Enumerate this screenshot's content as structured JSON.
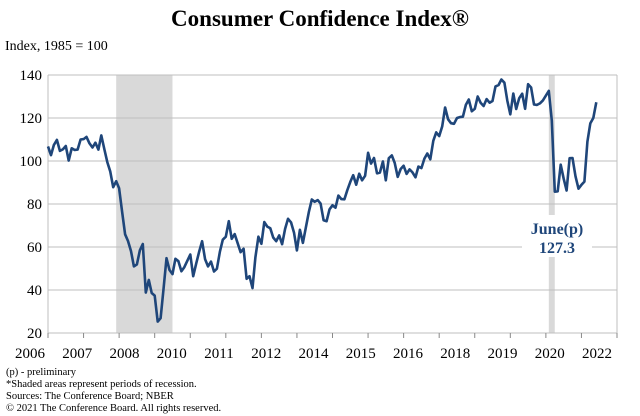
{
  "chart_data": {
    "type": "line",
    "title": "Consumer Confidence Index®",
    "ylabel": "Index, 1985 = 100",
    "xlabel": "",
    "ylim": [
      20,
      140
    ],
    "yticks": [
      20,
      40,
      60,
      80,
      100,
      120,
      140
    ],
    "xlim": [
      2006,
      2022
    ],
    "xtick_labels": [
      "2006",
      "2007",
      "2008",
      "2010",
      "2011",
      "2012",
      "2014",
      "2015",
      "2016",
      "2018",
      "2019",
      "2020",
      "2022"
    ],
    "grid": "horizontal",
    "line_color": "#1f467a",
    "recession_color": "#d9d9d9",
    "recessions": [
      [
        2007.917,
        2009.5
      ],
      [
        2020.083,
        2020.25
      ]
    ],
    "start": "2006-01",
    "frequency": "monthly",
    "values": [
      106.8,
      102.7,
      107.5,
      109.8,
      104.7,
      105.4,
      107.0,
      100.2,
      105.9,
      105.1,
      105.3,
      110.0,
      110.2,
      111.2,
      108.2,
      106.3,
      108.5,
      105.3,
      111.9,
      105.6,
      99.5,
      95.2,
      87.8,
      90.6,
      87.3,
      76.4,
      65.9,
      62.8,
      58.1,
      51.0,
      51.9,
      58.5,
      61.4,
      38.8,
      44.7,
      38.6,
      37.4,
      25.3,
      26.9,
      40.8,
      54.8,
      49.3,
      47.4,
      54.5,
      53.4,
      48.7,
      50.6,
      53.6,
      56.5,
      46.4,
      52.3,
      57.7,
      62.7,
      54.3,
      51.0,
      53.2,
      48.6,
      49.9,
      57.8,
      63.4,
      64.8,
      72.0,
      63.8,
      66.0,
      61.7,
      57.6,
      59.2,
      45.2,
      46.4,
      40.9,
      55.2,
      64.8,
      61.5,
      71.6,
      69.5,
      68.7,
      64.4,
      62.7,
      65.4,
      61.3,
      68.4,
      73.1,
      71.5,
      66.7,
      58.4,
      68.0,
      61.9,
      69.0,
      76.2,
      82.1,
      81.0,
      81.8,
      80.2,
      72.4,
      72.0,
      77.5,
      79.4,
      78.3,
      83.9,
      82.3,
      82.2,
      86.4,
      90.3,
      93.4,
      89.0,
      94.1,
      91.0,
      93.1,
      103.8,
      98.8,
      101.4,
      94.3,
      94.6,
      99.8,
      91.0,
      101.3,
      102.6,
      99.1,
      92.6,
      96.3,
      97.8,
      94.0,
      96.1,
      94.7,
      92.4,
      97.4,
      96.7,
      101.1,
      103.5,
      100.8,
      109.4,
      113.3,
      111.6,
      116.1,
      124.9,
      119.4,
      117.6,
      117.3,
      120.0,
      120.4,
      120.6,
      126.2,
      128.6,
      123.1,
      124.3,
      130.0,
      127.0,
      125.6,
      128.8,
      127.1,
      127.9,
      134.7,
      135.3,
      137.9,
      136.4,
      128.1,
      121.7,
      131.4,
      124.2,
      129.2,
      131.3,
      124.3,
      135.7,
      134.2,
      126.3,
      126.1,
      126.8,
      128.2,
      130.4,
      132.6,
      118.8,
      85.7,
      85.9,
      98.3,
      91.7,
      86.3,
      101.3,
      101.4,
      92.9,
      87.1,
      88.9,
      90.4,
      109.0,
      117.5,
      120.0,
      127.3
    ],
    "annotation": {
      "label": "June(p)",
      "value": "127.3"
    }
  },
  "footnotes": [
    "(p) - preliminary",
    "*Shaded areas represent periods of recession.",
    "Sources: The Conference Board; NBER",
    "© 2021 The Conference Board. All rights reserved."
  ]
}
